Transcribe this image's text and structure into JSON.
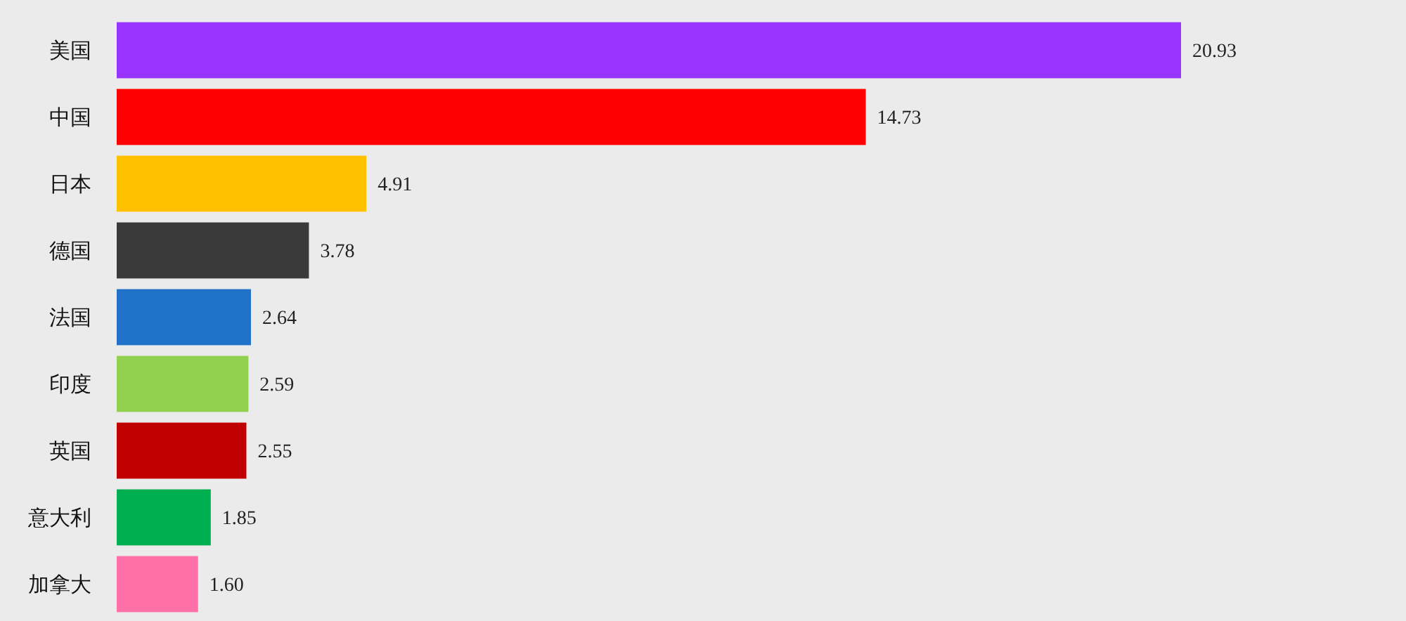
{
  "chart_data": {
    "type": "bar",
    "orientation": "horizontal",
    "categories": [
      "美国",
      "中国",
      "日本",
      "德国",
      "法国",
      "印度",
      "英国",
      "意大利",
      "加拿大"
    ],
    "values": [
      20.93,
      14.73,
      4.91,
      3.78,
      2.64,
      2.59,
      2.55,
      1.85,
      1.6
    ],
    "value_labels": [
      "20.93",
      "14.73",
      "4.91",
      "3.78",
      "2.64",
      "2.59",
      "2.55",
      "1.85",
      "1.60"
    ],
    "colors": [
      "#9933ff",
      "#ff0000",
      "#ffc000",
      "#3a3a3a",
      "#1f72c8",
      "#92d050",
      "#c00000",
      "#00b050",
      "#ff6fa8"
    ]
  }
}
